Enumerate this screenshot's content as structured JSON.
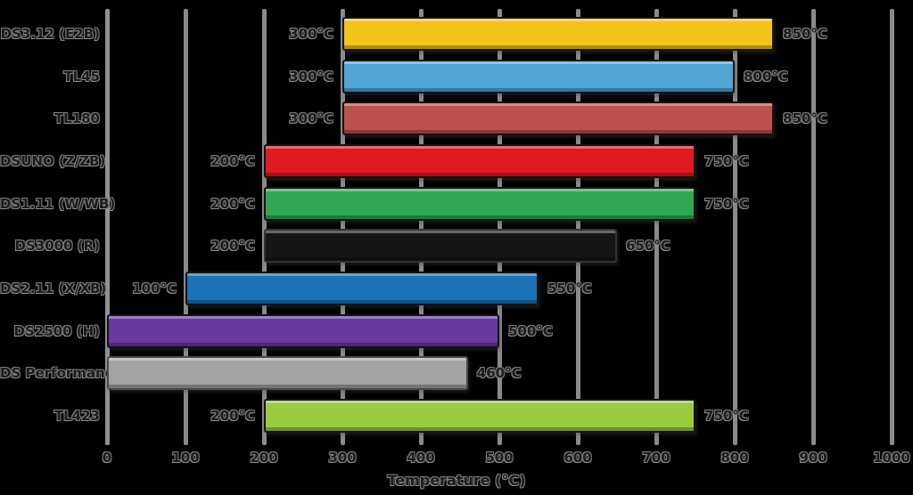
{
  "chart_data": {
    "type": "bar",
    "orientation": "horizontal-range",
    "title": "",
    "xlabel": "Temperature (°C)",
    "xlim": [
      0,
      1000
    ],
    "xticks": [
      "0",
      "100",
      "200",
      "300",
      "400",
      "500",
      "600",
      "700",
      "800",
      "900",
      "1000"
    ],
    "grid": true,
    "legend": false,
    "rows": [
      {
        "label": "DS3.12 (E2B)",
        "min": 300,
        "max": 850,
        "min_label": "300°C",
        "max_label": "850°C",
        "color": "#F2C31B",
        "border": "#141414"
      },
      {
        "label": "TL45",
        "min": 300,
        "max": 800,
        "min_label": "300°C",
        "max_label": "800°C",
        "color": "#4FA5D5",
        "border": "#141414"
      },
      {
        "label": "TL180",
        "min": 300,
        "max": 850,
        "min_label": "300°C",
        "max_label": "850°C",
        "color": "#C0504D",
        "border": "#141414"
      },
      {
        "label": "DSUNO (Z/ZB)",
        "min": 200,
        "max": 750,
        "min_label": "200°C",
        "max_label": "750°C",
        "color": "#E2191E",
        "border": "#141414"
      },
      {
        "label": "DS1.11 (W/WB)",
        "min": 200,
        "max": 750,
        "min_label": "200°C",
        "max_label": "750°C",
        "color": "#2FA851",
        "border": "#141414"
      },
      {
        "label": "DS3000 (R)",
        "min": 200,
        "max": 650,
        "min_label": "200°C",
        "max_label": "650°C",
        "color": "#161616",
        "border": "#333333"
      },
      {
        "label": "DS2.11 (X/XB)",
        "min": 100,
        "max": 550,
        "min_label": "100°C",
        "max_label": "550°C",
        "color": "#1B72B8",
        "border": "#141414"
      },
      {
        "label": "DS2500 (H)",
        "min": 0,
        "max": 500,
        "min_label": "",
        "max_label": "500°C",
        "color": "#68399E",
        "border": "#141414"
      },
      {
        "label": "DS Performance",
        "min": 0,
        "max": 460,
        "min_label": "",
        "max_label": "460°C",
        "color": "#A3A3A3",
        "border": "#4a4a4a"
      },
      {
        "label": "TL423",
        "min": 200,
        "max": 750,
        "min_label": "200°C",
        "max_label": "750°C",
        "color": "#9ACA3E",
        "border": "#141414"
      }
    ],
    "geometry_note": "x_px = 120 + value*0.88"
  }
}
